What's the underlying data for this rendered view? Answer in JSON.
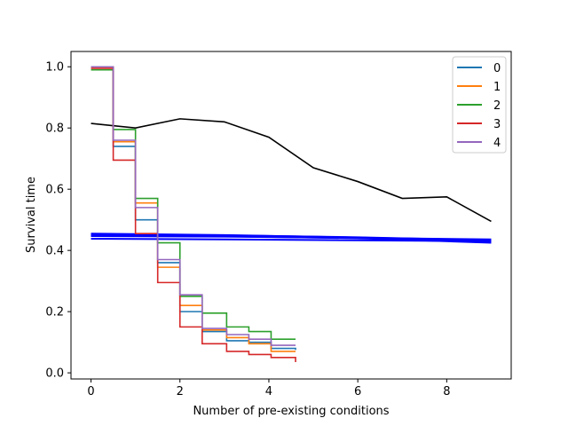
{
  "chart_data": {
    "type": "line",
    "xlabel": "Number of pre-existing conditions",
    "ylabel": "Survival time",
    "xlim": [
      -0.45,
      9.45
    ],
    "ylim": [
      -0.02,
      1.05
    ],
    "xticks": [
      0,
      2,
      4,
      6,
      8
    ],
    "yticks": [
      0.0,
      0.2,
      0.4,
      0.6,
      0.8,
      1.0
    ],
    "x_tick_labels": [
      "0",
      "2",
      "4",
      "6",
      "8"
    ],
    "y_tick_labels": [
      "0.0",
      "0.2",
      "0.4",
      "0.6",
      "0.8",
      "1.0"
    ],
    "grid": false,
    "legend_position": "top-right",
    "step_series": [
      {
        "name": "0",
        "color": "#1f77b4",
        "x": [
          0,
          0.5,
          1.0,
          1.5,
          2.0,
          2.5,
          3.05,
          3.55,
          4.05,
          4.6
        ],
        "y": [
          1.0,
          0.74,
          0.5,
          0.36,
          0.2,
          0.135,
          0.105,
          0.1,
          0.08,
          0.075
        ]
      },
      {
        "name": "1",
        "color": "#ff7f0e",
        "x": [
          0,
          0.5,
          1.0,
          1.5,
          2.0,
          2.5,
          3.05,
          3.55,
          4.05,
          4.6
        ],
        "y": [
          1.0,
          0.755,
          0.555,
          0.345,
          0.22,
          0.14,
          0.115,
          0.095,
          0.07,
          0.07
        ]
      },
      {
        "name": "2",
        "color": "#2ca02c",
        "x": [
          0,
          0.5,
          1.0,
          1.5,
          2.0,
          2.5,
          3.05,
          3.55,
          4.05,
          4.6
        ],
        "y": [
          0.99,
          0.795,
          0.57,
          0.425,
          0.25,
          0.195,
          0.15,
          0.135,
          0.11,
          0.11
        ]
      },
      {
        "name": "3",
        "color": "#d62728",
        "x": [
          0,
          0.5,
          1.0,
          1.5,
          2.0,
          2.5,
          3.05,
          3.55,
          4.05,
          4.6
        ],
        "y": [
          0.995,
          0.695,
          0.455,
          0.295,
          0.15,
          0.095,
          0.07,
          0.06,
          0.05,
          0.035
        ]
      },
      {
        "name": "4",
        "color": "#9467bd",
        "x": [
          0,
          0.5,
          1.0,
          1.5,
          2.0,
          2.5,
          3.05,
          3.55,
          4.05,
          4.6
        ],
        "y": [
          1.0,
          0.76,
          0.54,
          0.37,
          0.255,
          0.145,
          0.125,
          0.11,
          0.09,
          0.09
        ]
      }
    ],
    "line_series": [
      {
        "color": "#000000",
        "width": 1.6,
        "x": [
          0,
          1,
          2,
          3,
          4,
          5,
          6,
          7,
          8,
          9
        ],
        "y": [
          0.815,
          0.8,
          0.83,
          0.82,
          0.77,
          0.67,
          0.625,
          0.57,
          0.575,
          0.495
        ]
      }
    ],
    "band_lines": [
      {
        "color": "#0000ff",
        "width": 2,
        "x": [
          0,
          3,
          6,
          9
        ],
        "y": [
          0.455,
          0.45,
          0.442,
          0.43
        ]
      },
      {
        "color": "#0000ff",
        "width": 2,
        "x": [
          0,
          3,
          6,
          9
        ],
        "y": [
          0.45,
          0.446,
          0.44,
          0.425
        ]
      },
      {
        "color": "#0000ff",
        "width": 2,
        "x": [
          0,
          3,
          6,
          9
        ],
        "y": [
          0.453,
          0.449,
          0.443,
          0.433
        ]
      },
      {
        "color": "#0000ff",
        "width": 2,
        "x": [
          0,
          3,
          6,
          9
        ],
        "y": [
          0.447,
          0.445,
          0.441,
          0.436
        ]
      },
      {
        "color": "#0000ff",
        "width": 2,
        "x": [
          0,
          3,
          6,
          9
        ],
        "y": [
          0.438,
          0.436,
          0.433,
          0.43
        ]
      }
    ]
  }
}
